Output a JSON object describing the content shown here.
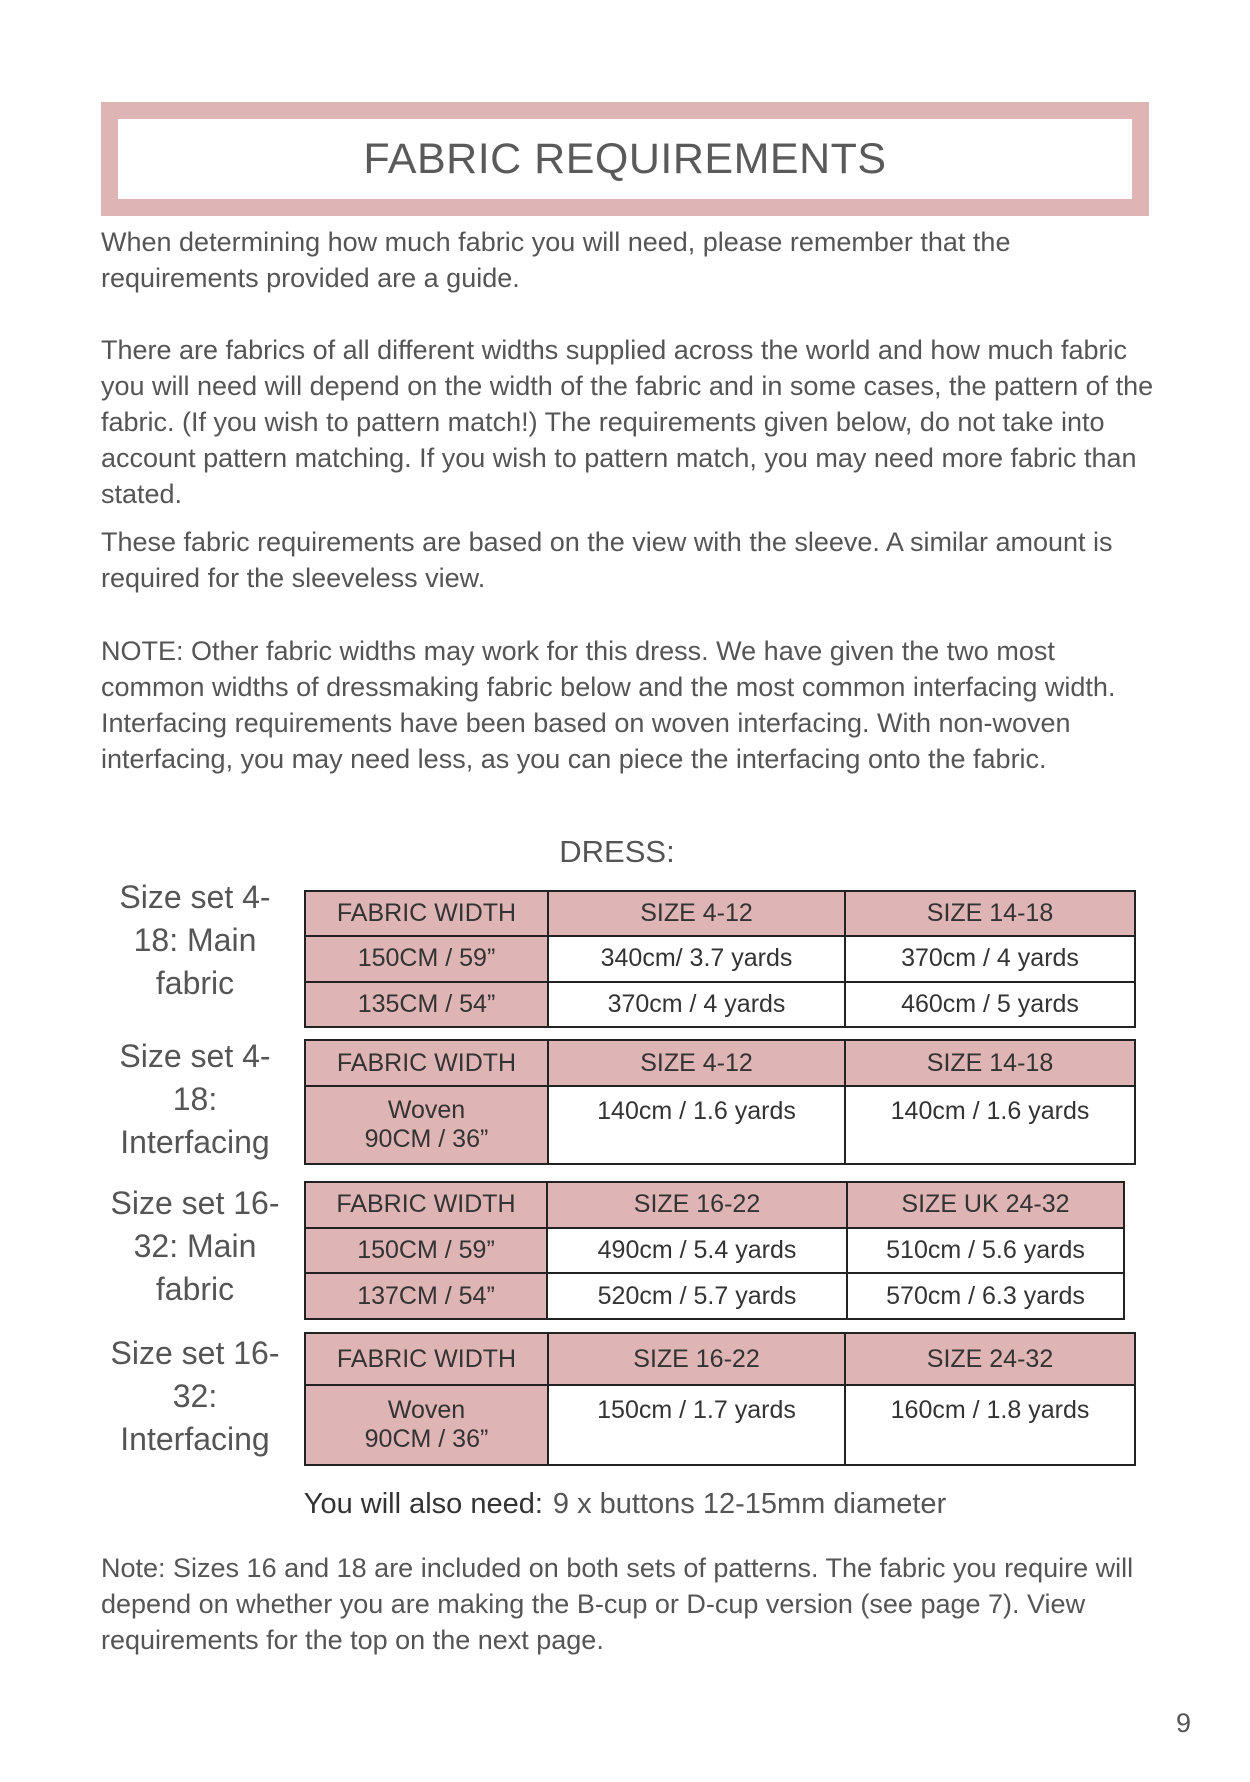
{
  "title": "FABRIC REQUIREMENTS",
  "paragraphs": [
    "When determining how much fabric you will need, please remember that the requirements provided are a guide.",
    "There are fabrics of all different widths supplied across the world and how much fabric you will need will depend on the width of the fabric and in some cases, the pattern of the fabric. (If you wish to pattern match!) The requirements given below, do not take into account pattern matching. If you wish to pattern match, you may need more fabric than stated.",
    "These fabric requirements are based on the view with the sleeve. A similar amount is required for the sleeveless view.",
    "NOTE: Other fabric widths may work for this dress. We have given the two most common widths of dressmaking fabric below and the most common interfacing width. Interfacing requirements have been based on woven interfacing. With non-woven interfacing, you may need less, as you can piece the interfacing onto the fabric."
  ],
  "section_heading": "DRESS:",
  "tables": [
    {
      "label": "Size set 4-18: Main fabric",
      "headers": [
        "FABRIC WIDTH",
        "SIZE 4-12",
        "SIZE 14-18"
      ],
      "rows": [
        [
          "150CM / 59”",
          "340cm/ 3.7 yards",
          "370cm / 4 yards"
        ],
        [
          "135CM / 54”",
          "370cm / 4 yards",
          "460cm / 5 yards"
        ]
      ]
    },
    {
      "label": "Size set 4-18: Interfacing",
      "headers": [
        "FABRIC WIDTH",
        "SIZE 4-12",
        "SIZE 14-18"
      ],
      "rows": [
        [
          "Woven 90CM / 36”",
          "140cm / 1.6 yards",
          "140cm / 1.6 yards"
        ]
      ]
    },
    {
      "label": "Size set 16-32: Main fabric",
      "headers": [
        "FABRIC WIDTH",
        "SIZE 16-22",
        "SIZE UK 24-32"
      ],
      "rows": [
        [
          "150CM / 59”",
          "490cm / 5.4 yards",
          "510cm / 5.6 yards"
        ],
        [
          "137CM / 54”",
          "520cm / 5.7 yards",
          "570cm / 6.3 yards"
        ]
      ]
    },
    {
      "label": "Size set 16-32: Interfacing",
      "headers": [
        "FABRIC WIDTH",
        "SIZE 16-22",
        "SIZE 24-32"
      ],
      "rows": [
        [
          "Woven 90CM / 36”",
          "150cm / 1.7 yards",
          "160cm / 1.8 yards"
        ]
      ]
    }
  ],
  "also_need": {
    "label": "You will also need:",
    "value": "9 x buttons 12-15mm diameter"
  },
  "note": "Note: Sizes 16 and 18 are included on both sets of patterns. The fabric you require will depend on whether you are making the B-cup or D-cup version (see page 7). View requirements for the top on the next page.",
  "page_number": "9",
  "colors": {
    "accent_pink": "#dfb4b4",
    "text": "#555555"
  }
}
